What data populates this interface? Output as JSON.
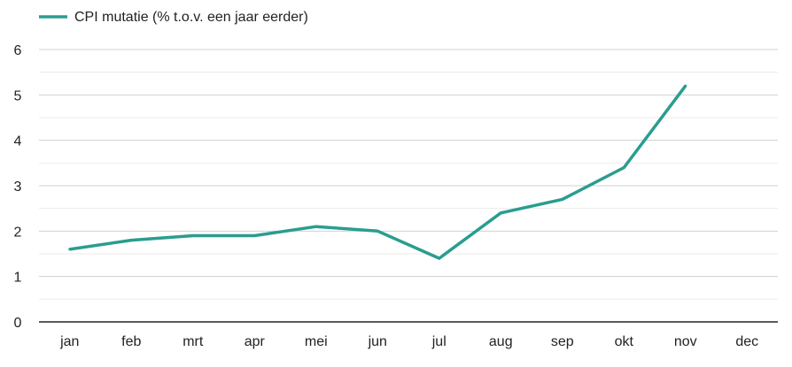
{
  "chart_data": {
    "type": "line",
    "legend_position": "top-left",
    "grid": true,
    "categories": [
      "jan",
      "feb",
      "mrt",
      "apr",
      "mei",
      "jun",
      "jul",
      "aug",
      "sep",
      "okt",
      "nov",
      "dec"
    ],
    "series": [
      {
        "name": "CPI mutatie (% t.o.v. een jaar eerder)",
        "color": "#2a9d8f",
        "values": [
          1.6,
          1.8,
          1.9,
          1.9,
          2.1,
          2.0,
          1.4,
          2.4,
          2.7,
          3.4,
          5.2,
          null
        ]
      }
    ],
    "ylim": [
      0,
      6
    ],
    "yticks": [
      "0",
      "1",
      "2",
      "3",
      "4",
      "5",
      "6"
    ]
  }
}
